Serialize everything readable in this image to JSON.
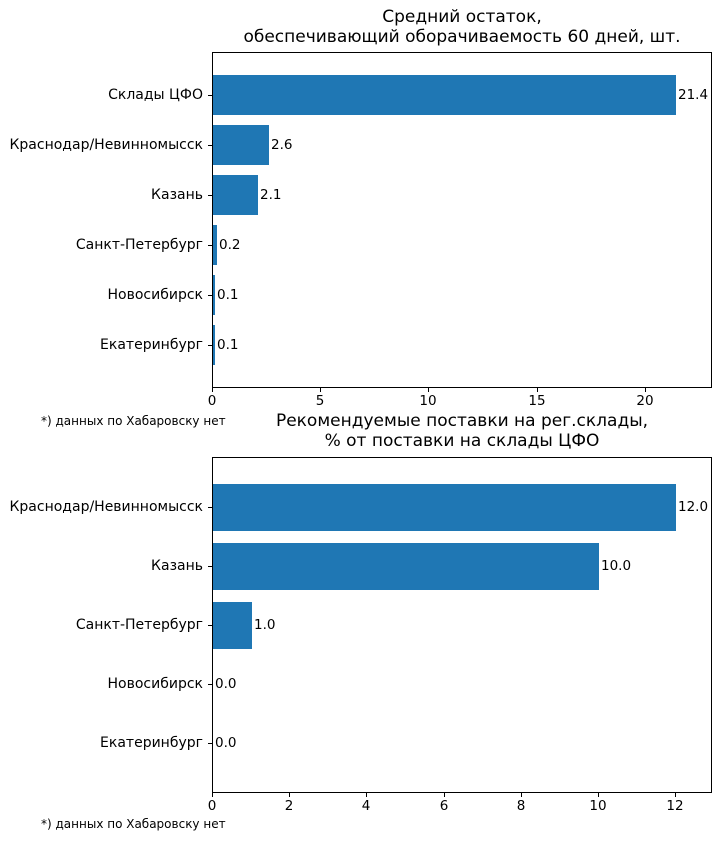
{
  "figure": {
    "background": "#ffffff",
    "accent_color": "#1f77b4"
  },
  "chart_data": [
    {
      "type": "bar",
      "orientation": "horizontal",
      "title": "Средний остаток,\nобеспечивающий оборачиваемость 60 дней, шт.",
      "title_lines": [
        "Средний остаток,",
        "обеспечивающий оборачиваемость 60 дней, шт."
      ],
      "categories": [
        "Склады ЦФО",
        "Краснодар/Невинномысск",
        "Казань",
        "Санкт-Петербург",
        "Новосибирск",
        "Екатеринбург"
      ],
      "values": [
        21.4,
        2.6,
        2.1,
        0.2,
        0.1,
        0.1
      ],
      "value_labels": [
        "21.4",
        "2.6",
        "2.1",
        "0.2",
        "0.1",
        "0.1"
      ],
      "xticks": [
        0,
        5,
        10,
        15,
        20
      ],
      "xlim": [
        0,
        23.1
      ],
      "xlabel": "",
      "ylabel": "",
      "grid": false,
      "legend": false,
      "bar_color": "#1f77b4",
      "footnote": "*) данных по Хабаровску нет"
    },
    {
      "type": "bar",
      "orientation": "horizontal",
      "title": "Рекомендуемые поставки на рег.склады,\n% от поставки на склады ЦФО",
      "title_lines": [
        "Рекомендуемые поставки на рег.склады,",
        "% от поставки на склады ЦФО"
      ],
      "categories": [
        "Краснодар/Невинномысск",
        "Казань",
        "Санкт-Петербург",
        "Новосибирск",
        "Екатеринбург"
      ],
      "values": [
        12.0,
        10.0,
        1.0,
        0.0,
        0.0
      ],
      "value_labels": [
        "12.0",
        "10.0",
        "1.0",
        "0.0",
        "0.0"
      ],
      "xticks": [
        0,
        2,
        4,
        6,
        8,
        10,
        12
      ],
      "xlim": [
        0,
        12.95
      ],
      "xlabel": "",
      "ylabel": "",
      "grid": false,
      "legend": false,
      "bar_color": "#1f77b4",
      "footnote": "*) данных по Хабаровску нет"
    }
  ]
}
